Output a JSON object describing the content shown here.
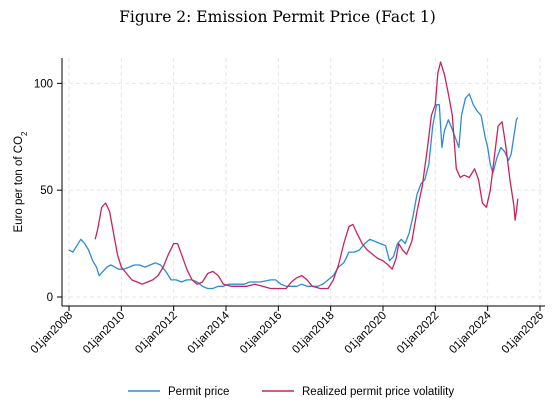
{
  "chart_data": {
    "type": "line",
    "title": "Figure 2: Emission Permit Price (Fact 1)",
    "ylabel": "Euro per ton of CO",
    "ylabel_subscript": "2",
    "xlim": [
      2008,
      2026
    ],
    "ylim": [
      0,
      110
    ],
    "grid": true,
    "legend_placement": "bottom",
    "x_ticks": [
      2008,
      2010,
      2012,
      2014,
      2016,
      2018,
      2020,
      2022,
      2024,
      2026
    ],
    "x_tick_labels": [
      "01jan2008",
      "01jan2010",
      "01jan2012",
      "01jan2014",
      "01jan2016",
      "01jan2018",
      "01jan2020",
      "01jan2022",
      "01jan2024",
      "01jan2026"
    ],
    "y_ticks": [
      0,
      50,
      100
    ],
    "y_tick_labels": [
      "0",
      "50",
      "100"
    ],
    "series": [
      {
        "name": "Permit price",
        "color": "#2e8bd8",
        "points": [
          [
            2008.0,
            22
          ],
          [
            2008.15,
            21
          ],
          [
            2008.3,
            24
          ],
          [
            2008.45,
            27
          ],
          [
            2008.6,
            25
          ],
          [
            2008.75,
            22
          ],
          [
            2008.9,
            17
          ],
          [
            2009.05,
            14
          ],
          [
            2009.15,
            10
          ],
          [
            2009.3,
            12
          ],
          [
            2009.45,
            14
          ],
          [
            2009.6,
            15
          ],
          [
            2009.75,
            14
          ],
          [
            2009.9,
            13
          ],
          [
            2010.1,
            13
          ],
          [
            2010.3,
            14
          ],
          [
            2010.5,
            15
          ],
          [
            2010.7,
            15
          ],
          [
            2010.9,
            14
          ],
          [
            2011.1,
            15
          ],
          [
            2011.3,
            16
          ],
          [
            2011.5,
            15
          ],
          [
            2011.7,
            12
          ],
          [
            2011.9,
            8
          ],
          [
            2012.1,
            8
          ],
          [
            2012.3,
            7
          ],
          [
            2012.5,
            8
          ],
          [
            2012.7,
            8
          ],
          [
            2012.9,
            7
          ],
          [
            2013.1,
            5
          ],
          [
            2013.3,
            4
          ],
          [
            2013.5,
            4
          ],
          [
            2013.7,
            5
          ],
          [
            2013.9,
            5
          ],
          [
            2014.1,
            6
          ],
          [
            2014.3,
            6
          ],
          [
            2014.5,
            6
          ],
          [
            2014.7,
            6
          ],
          [
            2014.9,
            7
          ],
          [
            2015.1,
            7
          ],
          [
            2015.3,
            7
          ],
          [
            2015.5,
            7.5
          ],
          [
            2015.7,
            8
          ],
          [
            2015.9,
            8
          ],
          [
            2016.1,
            6
          ],
          [
            2016.3,
            5
          ],
          [
            2016.5,
            5
          ],
          [
            2016.7,
            5
          ],
          [
            2016.9,
            6
          ],
          [
            2017.1,
            5
          ],
          [
            2017.3,
            5
          ],
          [
            2017.5,
            5
          ],
          [
            2017.7,
            6
          ],
          [
            2017.9,
            8
          ],
          [
            2018.1,
            10
          ],
          [
            2018.3,
            14
          ],
          [
            2018.5,
            16
          ],
          [
            2018.7,
            21
          ],
          [
            2018.9,
            21
          ],
          [
            2019.1,
            22
          ],
          [
            2019.3,
            25
          ],
          [
            2019.5,
            27
          ],
          [
            2019.7,
            26
          ],
          [
            2019.9,
            25
          ],
          [
            2020.1,
            24
          ],
          [
            2020.25,
            17
          ],
          [
            2020.4,
            19
          ],
          [
            2020.55,
            25
          ],
          [
            2020.7,
            27
          ],
          [
            2020.85,
            25
          ],
          [
            2021.0,
            30
          ],
          [
            2021.15,
            38
          ],
          [
            2021.3,
            48
          ],
          [
            2021.45,
            53
          ],
          [
            2021.6,
            55
          ],
          [
            2021.75,
            62
          ],
          [
            2021.9,
            80
          ],
          [
            2022.05,
            90
          ],
          [
            2022.15,
            90
          ],
          [
            2022.25,
            70
          ],
          [
            2022.35,
            78
          ],
          [
            2022.5,
            83
          ],
          [
            2022.6,
            80
          ],
          [
            2022.75,
            75
          ],
          [
            2022.9,
            70
          ],
          [
            2023.0,
            85
          ],
          [
            2023.15,
            93
          ],
          [
            2023.3,
            95
          ],
          [
            2023.45,
            90
          ],
          [
            2023.6,
            87
          ],
          [
            2023.75,
            85
          ],
          [
            2023.9,
            75
          ],
          [
            2024.0,
            70
          ],
          [
            2024.1,
            62
          ],
          [
            2024.2,
            58
          ],
          [
            2024.35,
            65
          ],
          [
            2024.5,
            70
          ],
          [
            2024.65,
            68
          ],
          [
            2024.8,
            64
          ],
          [
            2024.9,
            67
          ],
          [
            2025.0,
            75
          ],
          [
            2025.1,
            83
          ],
          [
            2025.15,
            84
          ]
        ]
      },
      {
        "name": "Realized permit price volatility",
        "color": "#c8245c",
        "points": [
          [
            2009.0,
            27
          ],
          [
            2009.1,
            32
          ],
          [
            2009.25,
            42
          ],
          [
            2009.4,
            44
          ],
          [
            2009.55,
            40
          ],
          [
            2009.7,
            30
          ],
          [
            2009.85,
            20
          ],
          [
            2010.0,
            14
          ],
          [
            2010.2,
            11
          ],
          [
            2010.4,
            8
          ],
          [
            2010.6,
            7
          ],
          [
            2010.8,
            6
          ],
          [
            2011.0,
            7
          ],
          [
            2011.2,
            8
          ],
          [
            2011.4,
            10
          ],
          [
            2011.6,
            14
          ],
          [
            2011.8,
            20
          ],
          [
            2012.0,
            25
          ],
          [
            2012.15,
            25
          ],
          [
            2012.3,
            20
          ],
          [
            2012.5,
            13
          ],
          [
            2012.7,
            8
          ],
          [
            2012.9,
            6
          ],
          [
            2013.1,
            7
          ],
          [
            2013.3,
            11
          ],
          [
            2013.5,
            12
          ],
          [
            2013.7,
            10
          ],
          [
            2013.9,
            6
          ],
          [
            2014.2,
            5
          ],
          [
            2014.5,
            5
          ],
          [
            2014.8,
            5
          ],
          [
            2015.1,
            6
          ],
          [
            2015.4,
            5
          ],
          [
            2015.7,
            4
          ],
          [
            2016.0,
            4
          ],
          [
            2016.3,
            4
          ],
          [
            2016.5,
            7
          ],
          [
            2016.7,
            9
          ],
          [
            2016.9,
            10
          ],
          [
            2017.1,
            8
          ],
          [
            2017.3,
            5
          ],
          [
            2017.6,
            4
          ],
          [
            2017.9,
            4
          ],
          [
            2018.1,
            8
          ],
          [
            2018.3,
            15
          ],
          [
            2018.5,
            25
          ],
          [
            2018.7,
            33
          ],
          [
            2018.85,
            34
          ],
          [
            2019.0,
            30
          ],
          [
            2019.2,
            25
          ],
          [
            2019.4,
            22
          ],
          [
            2019.6,
            20
          ],
          [
            2019.8,
            18
          ],
          [
            2020.0,
            17
          ],
          [
            2020.2,
            15
          ],
          [
            2020.35,
            13
          ],
          [
            2020.5,
            18
          ],
          [
            2020.6,
            25
          ],
          [
            2020.75,
            22
          ],
          [
            2020.9,
            20
          ],
          [
            2021.1,
            26
          ],
          [
            2021.3,
            40
          ],
          [
            2021.5,
            52
          ],
          [
            2021.7,
            70
          ],
          [
            2021.85,
            85
          ],
          [
            2022.0,
            90
          ],
          [
            2022.1,
            105
          ],
          [
            2022.2,
            110
          ],
          [
            2022.35,
            104
          ],
          [
            2022.5,
            95
          ],
          [
            2022.65,
            85
          ],
          [
            2022.8,
            60
          ],
          [
            2022.95,
            56
          ],
          [
            2023.1,
            57
          ],
          [
            2023.3,
            56
          ],
          [
            2023.5,
            60
          ],
          [
            2023.65,
            55
          ],
          [
            2023.8,
            44
          ],
          [
            2023.95,
            42
          ],
          [
            2024.1,
            50
          ],
          [
            2024.25,
            65
          ],
          [
            2024.4,
            80
          ],
          [
            2024.55,
            82
          ],
          [
            2024.7,
            70
          ],
          [
            2024.85,
            55
          ],
          [
            2025.0,
            43
          ],
          [
            2025.05,
            36
          ],
          [
            2025.1,
            40
          ],
          [
            2025.15,
            46
          ]
        ]
      }
    ]
  }
}
